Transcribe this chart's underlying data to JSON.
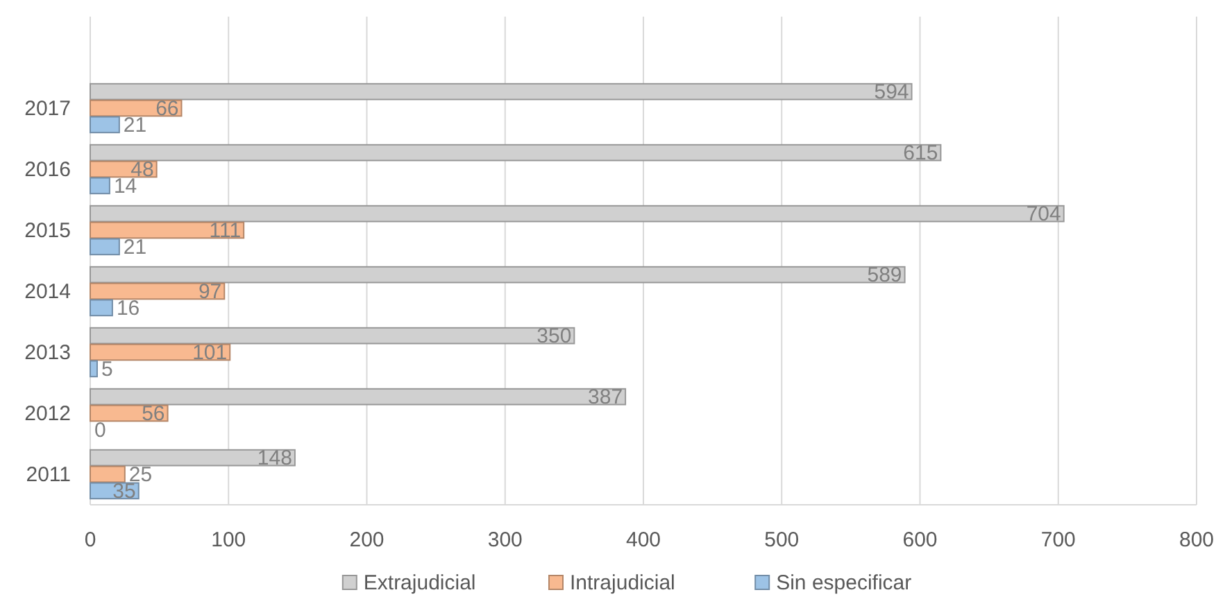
{
  "chart_data": {
    "type": "bar",
    "orientation": "horizontal",
    "categories": [
      "2017",
      "2016",
      "2015",
      "2014",
      "2013",
      "2012",
      "2011"
    ],
    "series": [
      {
        "name": "Extrajudicial",
        "color": "#d0d0d0",
        "values": [
          594,
          615,
          704,
          589,
          350,
          387,
          148
        ]
      },
      {
        "name": "Intrajudicial",
        "color": "#f8b990",
        "values": [
          66,
          48,
          111,
          97,
          101,
          56,
          25
        ]
      },
      {
        "name": "Sin especificar",
        "color": "#9dc3e6",
        "values": [
          21,
          14,
          21,
          16,
          5,
          0,
          35
        ]
      }
    ],
    "xlim": [
      0,
      800
    ],
    "xticks": [
      0,
      100,
      200,
      300,
      400,
      500,
      600,
      700,
      800
    ],
    "grid": "x",
    "legend": "bottom",
    "data_labels": true
  }
}
